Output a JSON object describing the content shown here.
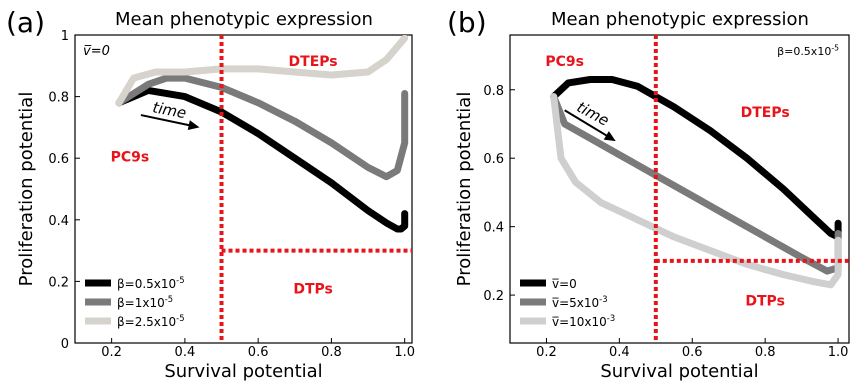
{
  "chart_data": [
    {
      "type": "line",
      "panel_label": "(a)",
      "title": "Mean phenotypic expression",
      "xlabel": "Survival potential",
      "ylabel": "Proliferation potential",
      "xlim": [
        0.1,
        1.02
      ],
      "ylim": [
        0,
        1
      ],
      "x_ticks": [
        "0.2",
        "0.4",
        "0.6",
        "0.8",
        "1.0"
      ],
      "x_tick_values": [
        0.2,
        0.4,
        0.6,
        0.8,
        1.0
      ],
      "y_ticks": [
        "0",
        "0.2",
        "0.4",
        "0.6",
        "0.8",
        "1"
      ],
      "y_tick_values": [
        0,
        0.2,
        0.4,
        0.6,
        0.8,
        1
      ],
      "grid": false,
      "legend_position": "bottom-left",
      "corner_label": "v̅=0",
      "thresholds": {
        "x": 0.5,
        "y": 0.3,
        "color": "#e8141a"
      },
      "region_labels": [
        {
          "text": "DTEPs",
          "x": 0.75,
          "y": 0.9
        },
        {
          "text": "PC9s",
          "x": 0.25,
          "y": 0.59
        },
        {
          "text": "DTPs",
          "x": 0.75,
          "y": 0.16
        }
      ],
      "annotations": [
        {
          "text": "time",
          "x": 0.31,
          "y": 0.75,
          "arrow_from": [
            0.28,
            0.74
          ],
          "arrow_to": [
            0.44,
            0.7
          ]
        }
      ],
      "series": [
        {
          "name": "β=0.5x10⁻⁵",
          "color": "#000000",
          "x": [
            0.22,
            0.3,
            0.4,
            0.5,
            0.6,
            0.7,
            0.8,
            0.9,
            0.95,
            0.98,
            0.99,
            1.0,
            1.0
          ],
          "y": [
            0.78,
            0.82,
            0.8,
            0.75,
            0.68,
            0.6,
            0.52,
            0.43,
            0.39,
            0.37,
            0.37,
            0.38,
            0.42
          ]
        },
        {
          "name": "β=1x10⁻⁵",
          "color": "#7a7a7a",
          "x": [
            0.22,
            0.3,
            0.35,
            0.4,
            0.5,
            0.6,
            0.7,
            0.8,
            0.9,
            0.95,
            0.98,
            1.0,
            1.0
          ],
          "y": [
            0.78,
            0.84,
            0.86,
            0.86,
            0.83,
            0.78,
            0.72,
            0.65,
            0.57,
            0.54,
            0.56,
            0.65,
            0.81
          ]
        },
        {
          "name": "β=2.5x10⁻⁵",
          "color": "#d6d3cd",
          "x": [
            0.22,
            0.26,
            0.32,
            0.4,
            0.5,
            0.6,
            0.7,
            0.8,
            0.9,
            0.95,
            1.0
          ],
          "y": [
            0.78,
            0.86,
            0.88,
            0.88,
            0.89,
            0.89,
            0.88,
            0.87,
            0.88,
            0.92,
            0.99
          ]
        }
      ]
    },
    {
      "type": "line",
      "panel_label": "(b)",
      "title": "Mean phenotypic expression",
      "xlabel": "Survival potential",
      "ylabel": "Proliferation potential",
      "xlim": [
        0.1,
        1.03
      ],
      "ylim": [
        0.06,
        0.96
      ],
      "x_ticks": [
        "0.2",
        "0.4",
        "0.6",
        "0.8",
        "1.0"
      ],
      "x_tick_values": [
        0.2,
        0.4,
        0.6,
        0.8,
        1.0
      ],
      "y_ticks": [
        "0.2",
        "0.4",
        "0.6",
        "0.8"
      ],
      "y_tick_values": [
        0.2,
        0.4,
        0.6,
        0.8
      ],
      "grid": false,
      "legend_position": "bottom-left",
      "corner_label": "β=0.5x10⁻⁵",
      "thresholds": {
        "x": 0.5,
        "y": 0.3,
        "color": "#e8141a"
      },
      "region_labels": [
        {
          "text": "PC9s",
          "x": 0.25,
          "y": 0.87
        },
        {
          "text": "DTEPs",
          "x": 0.8,
          "y": 0.72
        },
        {
          "text": "DTPs",
          "x": 0.8,
          "y": 0.17
        }
      ],
      "annotations": [
        {
          "text": "time",
          "x": 0.28,
          "y": 0.74,
          "arrow_from": [
            0.25,
            0.74
          ],
          "arrow_to": [
            0.39,
            0.65
          ]
        }
      ],
      "series": [
        {
          "name": "v̅=0",
          "color": "#000000",
          "x": [
            0.22,
            0.26,
            0.32,
            0.38,
            0.45,
            0.55,
            0.65,
            0.75,
            0.85,
            0.93,
            0.98,
            1.0,
            1.0
          ],
          "y": [
            0.78,
            0.82,
            0.83,
            0.83,
            0.81,
            0.75,
            0.68,
            0.6,
            0.51,
            0.43,
            0.38,
            0.37,
            0.41
          ]
        },
        {
          "name": "v̅=5x10⁻³",
          "color": "#7a7a7a",
          "x": [
            0.22,
            0.25,
            0.3,
            0.4,
            0.5,
            0.6,
            0.7,
            0.8,
            0.9,
            0.97,
            1.0,
            1.0
          ],
          "y": [
            0.78,
            0.7,
            0.67,
            0.61,
            0.55,
            0.49,
            0.43,
            0.37,
            0.31,
            0.27,
            0.28,
            0.38
          ]
        },
        {
          "name": "v̅=10x10⁻³",
          "color": "#cfcfcf",
          "x": [
            0.22,
            0.24,
            0.28,
            0.35,
            0.45,
            0.55,
            0.65,
            0.75,
            0.85,
            0.93,
            0.98,
            1.0,
            1.0
          ],
          "y": [
            0.78,
            0.6,
            0.53,
            0.47,
            0.42,
            0.37,
            0.33,
            0.29,
            0.26,
            0.24,
            0.23,
            0.26,
            0.36
          ]
        }
      ]
    }
  ]
}
